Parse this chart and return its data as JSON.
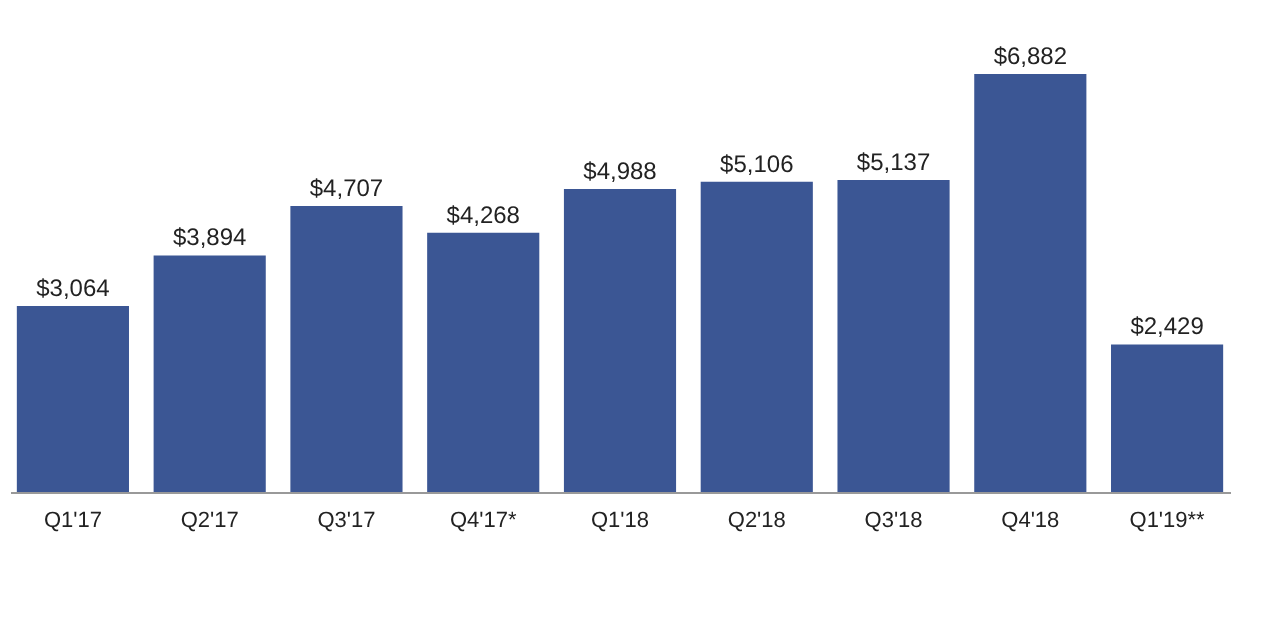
{
  "chart_data": {
    "type": "bar",
    "categories": [
      "Q1'17",
      "Q2'17",
      "Q3'17",
      "Q4'17*",
      "Q1'18",
      "Q2'18",
      "Q3'18",
      "Q4'18",
      "Q1'19**"
    ],
    "values": [
      3064,
      3894,
      4707,
      4268,
      4988,
      5106,
      5137,
      6882,
      2429
    ],
    "value_labels": [
      "$3,064",
      "$3,894",
      "$4,707",
      "$4,268",
      "$4,988",
      "$5,106",
      "$5,137",
      "$6,882",
      "$2,429"
    ],
    "color": "#3b5694",
    "grid": false
  }
}
